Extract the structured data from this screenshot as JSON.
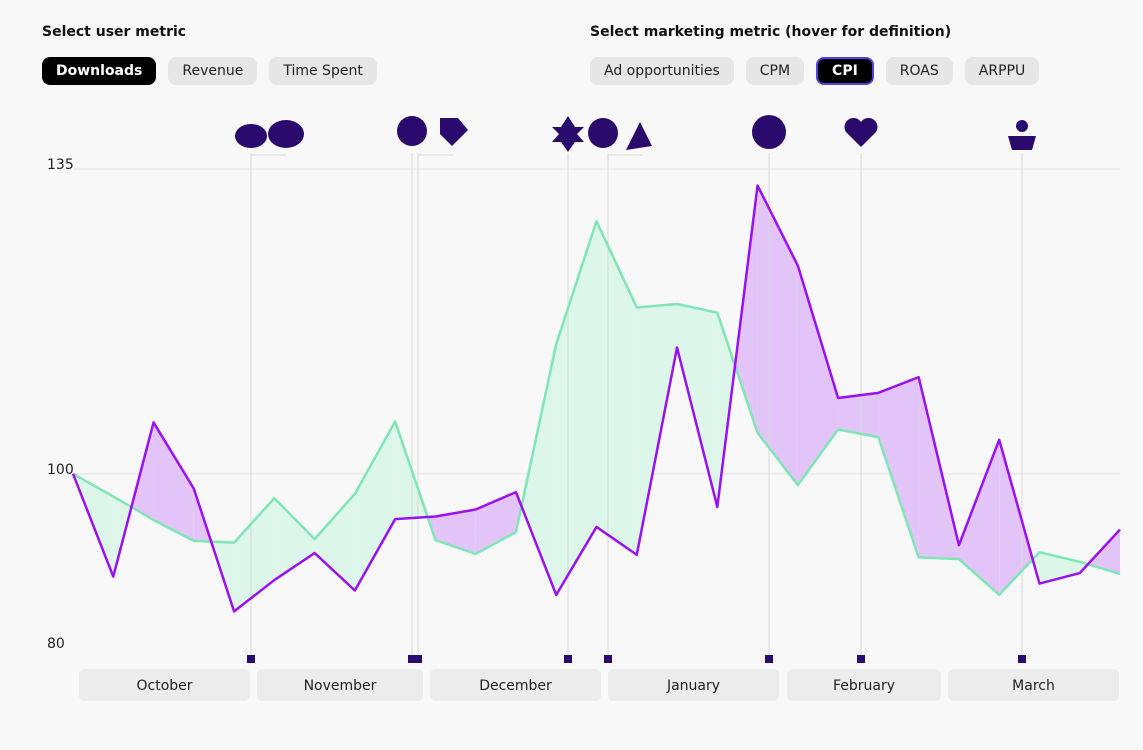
{
  "controls": {
    "user_metric_label": "Select user metric",
    "user_metrics": [
      "Downloads",
      "Revenue",
      "Time Spent"
    ],
    "user_metric_selected": 0,
    "marketing_metric_label": "Select marketing metric (hover for definition)",
    "marketing_metrics": [
      "Ad opportunities",
      "CPM",
      "CPI",
      "ROAS",
      "ARPPU"
    ],
    "marketing_metric_selected": 2
  },
  "chart_data": {
    "type": "line",
    "months": [
      "October",
      "November",
      "December",
      "January",
      "February",
      "March"
    ],
    "series": [
      {
        "color": "#7ee6b4",
        "fill": "#ddf6ea",
        "values": [
          100,
          97.4,
          94.7,
          92.3,
          92.1,
          97.2,
          92.5,
          97.7,
          106.0,
          92.4,
          90.8,
          93.3,
          114.9,
          129.0,
          119.1,
          119.5,
          118.5,
          104.7,
          98.7,
          105.1,
          104.2,
          90.4,
          90.2,
          86.1,
          91.0,
          89.9,
          88.5
        ]
      },
      {
        "color": "#9a10f0",
        "fill": "#e3c4f8",
        "values": [
          100,
          88.2,
          105.9,
          98.3,
          84.2,
          87.8,
          90.9,
          86.6,
          94.8,
          95.1,
          95.9,
          97.9,
          86.1,
          93.9,
          90.7,
          114.5,
          96.2,
          133.1,
          123.9,
          108.7,
          109.3,
          111.1,
          91.8,
          103.9,
          87.4,
          88.6,
          93.6
        ]
      }
    ],
    "ylim": [
      80,
      135
    ],
    "yticks": [
      80,
      100,
      135
    ],
    "grid": true
  }
}
